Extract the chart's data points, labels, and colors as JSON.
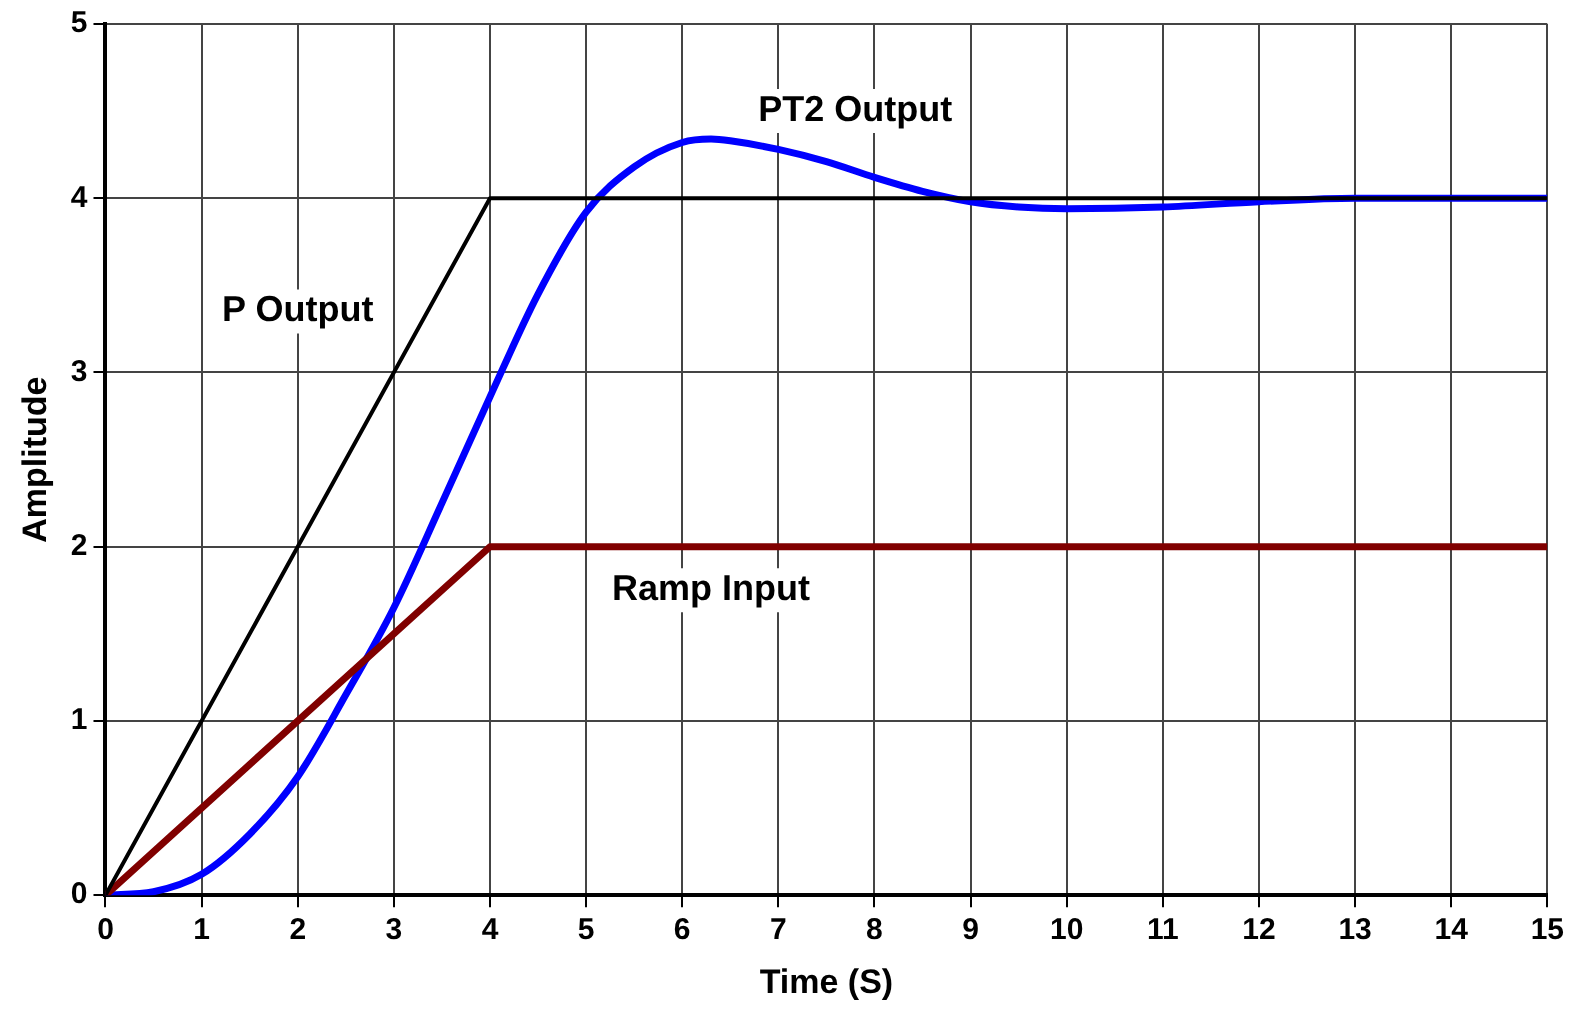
{
  "chart_data": {
    "type": "line",
    "xlabel": "Time (S)",
    "ylabel": "Amplitude",
    "xlim": [
      0,
      15
    ],
    "xticks": [
      0,
      1,
      2,
      3,
      4,
      5,
      6,
      7,
      8,
      9,
      10,
      11,
      12,
      13,
      14,
      15
    ],
    "ylim": [
      0,
      5
    ],
    "yticks": [
      0,
      1,
      2,
      3,
      4,
      5
    ],
    "grid": true,
    "legend": false,
    "marker": "none",
    "line_style": "solid",
    "series": [
      {
        "name": "P Output",
        "color": "#000000",
        "x": [
          0,
          4,
          15
        ],
        "values": [
          0,
          4,
          4
        ]
      },
      {
        "name": "Ramp Input",
        "color": "#800000",
        "x": [
          0,
          4,
          15
        ],
        "values": [
          0,
          2,
          2
        ]
      },
      {
        "name": "PT2 Output",
        "color": "#0000ff",
        "x": [
          0,
          0.5,
          1,
          1.5,
          2,
          2.5,
          3,
          3.5,
          4,
          4.5,
          5,
          5.5,
          6,
          6.3,
          6.5,
          7,
          7.5,
          8,
          8.5,
          9,
          9.5,
          10,
          11,
          12,
          13,
          14,
          15
        ],
        "values": [
          0,
          0.02,
          0.12,
          0.35,
          0.68,
          1.15,
          1.65,
          2.25,
          2.86,
          3.45,
          3.92,
          4.18,
          4.32,
          4.34,
          4.33,
          4.28,
          4.21,
          4.12,
          4.04,
          3.98,
          3.95,
          3.94,
          3.95,
          3.98,
          4.0,
          4.0,
          4.0
        ]
      }
    ]
  }
}
